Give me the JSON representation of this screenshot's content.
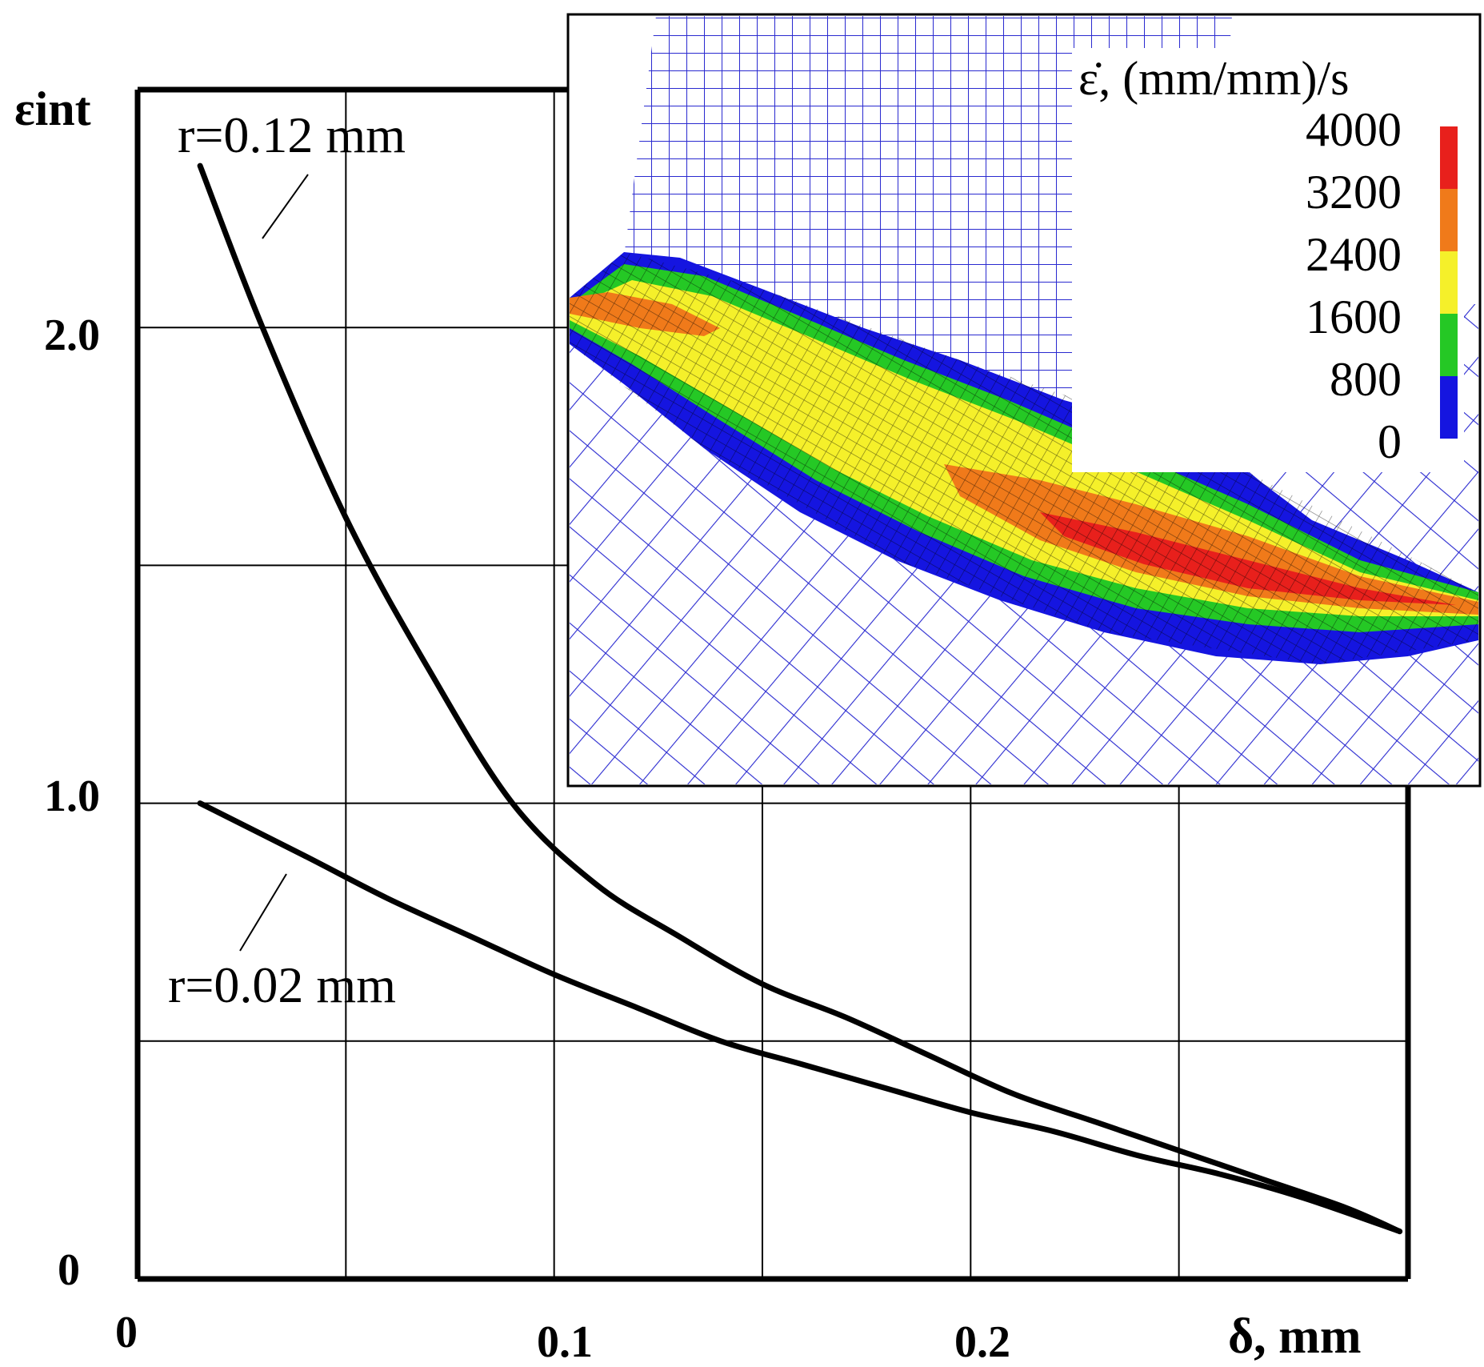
{
  "chart_data": {
    "type": "line",
    "ylabel": "εint",
    "xlabel": "δ, mm",
    "xlim": [
      0,
      0.305
    ],
    "ylim": [
      0,
      2.5
    ],
    "x_ticks": [
      "0",
      "0.1",
      "0.2"
    ],
    "y_ticks": [
      "0",
      "1.0",
      "2.0"
    ],
    "grid": true,
    "series": [
      {
        "name": "r=0.12 mm",
        "x": [
          0.015,
          0.03,
          0.05,
          0.07,
          0.09,
          0.11,
          0.13,
          0.15,
          0.17,
          0.19,
          0.21,
          0.23,
          0.25,
          0.27,
          0.29,
          0.303
        ],
        "y": [
          2.34,
          2.0,
          1.6,
          1.28,
          1.0,
          0.83,
          0.72,
          0.62,
          0.55,
          0.47,
          0.39,
          0.33,
          0.27,
          0.21,
          0.15,
          0.1
        ]
      },
      {
        "name": "r=0.02 mm",
        "x": [
          0.015,
          0.04,
          0.06,
          0.08,
          0.1,
          0.12,
          0.14,
          0.16,
          0.18,
          0.2,
          0.22,
          0.24,
          0.26,
          0.28,
          0.303
        ],
        "y": [
          1.0,
          0.89,
          0.8,
          0.72,
          0.64,
          0.57,
          0.5,
          0.45,
          0.4,
          0.35,
          0.31,
          0.26,
          0.22,
          0.17,
          0.1
        ]
      }
    ],
    "inset": {
      "title": "ε̇, (mm/mm)/s",
      "colorbar_values": [
        "4000",
        "3200",
        "2400",
        "1600",
        "800",
        "0"
      ],
      "colorbar_colors": [
        "#e8201c",
        "#f07a1a",
        "#f5f02a",
        "#25c825",
        "#1515e0"
      ],
      "mesh_color": "#1a1acc"
    }
  }
}
